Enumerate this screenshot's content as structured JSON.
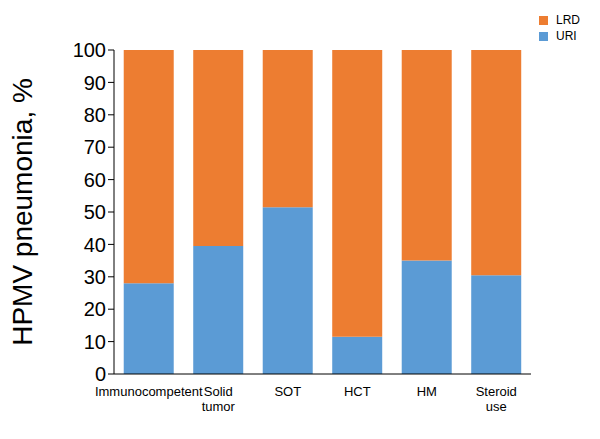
{
  "chart_data": {
    "type": "bar",
    "stacked": true,
    "y_label": "HPMV pneumonia, %",
    "categories": [
      "Immunocompetent",
      "Solid tumor",
      "SOT",
      "HCT",
      "HM",
      "Steroid use"
    ],
    "series": [
      {
        "name": "URI",
        "color": "#5b9bd5",
        "values": [
          28,
          39.5,
          51.5,
          11.5,
          35,
          30.5
        ]
      },
      {
        "name": "LRD",
        "color": "#ed7d31",
        "values": [
          72,
          60.5,
          48.5,
          88.5,
          65,
          69.5
        ]
      }
    ],
    "ylim": [
      0,
      100
    ],
    "yticks": [
      0,
      10,
      20,
      30,
      40,
      50,
      60,
      70,
      80,
      90,
      100
    ],
    "grid": false,
    "legend": "top-right"
  }
}
